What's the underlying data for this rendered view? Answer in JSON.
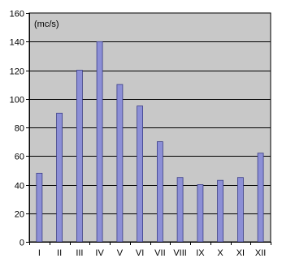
{
  "chart_data": {
    "type": "bar",
    "unit": "(mc/s)",
    "categories": [
      "I",
      "II",
      "III",
      "IV",
      "V",
      "VI",
      "VII",
      "VIII",
      "IX",
      "X",
      "XI",
      "XII"
    ],
    "values": [
      48,
      90,
      120,
      140,
      110,
      95,
      70,
      45,
      40,
      43,
      45,
      62
    ],
    "ylim": [
      0,
      160
    ],
    "yticks": [
      "0",
      "20",
      "40",
      "60",
      "80",
      "100",
      "120",
      "140",
      "160"
    ],
    "grid": true,
    "legend": "none",
    "colors": {
      "bar_fill": "#8c8fd6",
      "bar_stroke": "#3a3d88",
      "plot_bg": "#c8c8c8",
      "grid": "#000000",
      "frame": "#000000"
    }
  }
}
